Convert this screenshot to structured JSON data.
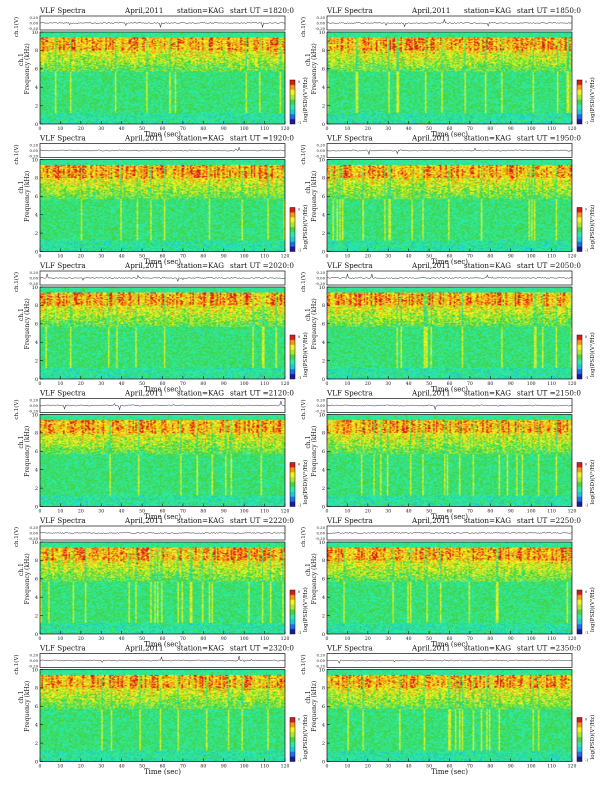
{
  "chart_data": [
    {
      "type": "heatmap",
      "title": "VLF Spectra",
      "date": "April,2011",
      "station": "station=KAG",
      "start": "start UT =1820:0",
      "wave_label": "ch.1(V)",
      "wave_ticks": [
        "0.20",
        "0.00",
        "-0.20"
      ],
      "ylabel_ch": "ch.1",
      "ylabel": "Frequency (kHz)",
      "yticks": [
        "0",
        "2",
        "4",
        "6",
        "8",
        "10"
      ],
      "ylim": [
        0,
        10
      ],
      "xlabel": "Time (sec)",
      "xticks": [
        "0",
        "10",
        "20",
        "30",
        "40",
        "50",
        "60",
        "70",
        "80",
        "90",
        "100",
        "110",
        "120"
      ],
      "xlim": [
        0,
        120
      ],
      "colorbar_label": "log(PSD)(V²/Hz)",
      "colorbar_ticks": [
        "0",
        "-1"
      ]
    },
    {
      "type": "heatmap",
      "title": "VLF Spectra",
      "date": "April,2011",
      "station": "station=KAG",
      "start": "start UT =1850:0",
      "wave_label": "ch.1(V)",
      "wave_ticks": [
        "0.20",
        "0.00",
        "-0.20"
      ],
      "ylabel_ch": "ch.1",
      "ylabel": "Frequency (kHz)",
      "yticks": [
        "0",
        "2",
        "4",
        "6",
        "8",
        "10"
      ],
      "ylim": [
        0,
        10
      ],
      "xlabel": "Time (sec)",
      "xticks": [
        "0",
        "10",
        "20",
        "30",
        "40",
        "50",
        "60",
        "70",
        "80",
        "90",
        "100",
        "110",
        "120"
      ],
      "xlim": [
        0,
        120
      ],
      "colorbar_label": "log(PSD)(V²/Hz)",
      "colorbar_ticks": [
        "0",
        "-1"
      ]
    },
    {
      "type": "heatmap",
      "title": "VLF Spectra",
      "date": "April,2011",
      "station": "station=KAG",
      "start": "start UT =1920:0",
      "wave_label": "ch.1(V)",
      "wave_ticks": [
        "0.20",
        "0.00",
        "-0.20"
      ],
      "ylabel_ch": "ch.1",
      "ylabel": "Frequency (kHz)",
      "yticks": [
        "0",
        "2",
        "4",
        "6",
        "8",
        "10"
      ],
      "ylim": [
        0,
        10
      ],
      "xlabel": "Time (sec)",
      "xticks": [
        "0",
        "10",
        "20",
        "30",
        "40",
        "50",
        "60",
        "70",
        "80",
        "90",
        "100",
        "110",
        "120"
      ],
      "xlim": [
        0,
        120
      ],
      "colorbar_label": "log(PSD)(V²/Hz)",
      "colorbar_ticks": [
        "0",
        "-1"
      ]
    },
    {
      "type": "heatmap",
      "title": "VLF Spectra",
      "date": "April,2011",
      "station": "station=KAG",
      "start": "start UT =1950:0",
      "wave_label": "ch.1(V)",
      "wave_ticks": [
        "0.20",
        "0.00",
        "-0.20"
      ],
      "ylabel_ch": "ch.1",
      "ylabel": "Frequency (kHz)",
      "yticks": [
        "0",
        "2",
        "4",
        "6",
        "8",
        "10"
      ],
      "ylim": [
        0,
        10
      ],
      "xlabel": "Time (sec)",
      "xticks": [
        "0",
        "10",
        "20",
        "30",
        "40",
        "50",
        "60",
        "70",
        "80",
        "90",
        "100",
        "110",
        "120"
      ],
      "xlim": [
        0,
        120
      ],
      "colorbar_label": "log(PSD)(V²/Hz)",
      "colorbar_ticks": [
        "0",
        "-1"
      ]
    },
    {
      "type": "heatmap",
      "title": "VLF Spectra",
      "date": "April,2011",
      "station": "station=KAG",
      "start": "start UT =2020:0",
      "wave_label": "ch.1(V)",
      "wave_ticks": [
        "0.20",
        "0.00",
        "-0.20"
      ],
      "ylabel_ch": "ch.1",
      "ylabel": "Frequency (kHz)",
      "yticks": [
        "0",
        "2",
        "4",
        "6",
        "8",
        "10"
      ],
      "ylim": [
        0,
        10
      ],
      "xlabel": "Time (sec)",
      "xticks": [
        "0",
        "10",
        "20",
        "30",
        "40",
        "50",
        "60",
        "70",
        "80",
        "90",
        "100",
        "110",
        "120"
      ],
      "xlim": [
        0,
        120
      ],
      "colorbar_label": "log(PSD)(V²/Hz)",
      "colorbar_ticks": [
        "0",
        "-1"
      ]
    },
    {
      "type": "heatmap",
      "title": "VLF Spectra",
      "date": "April,2011",
      "station": "station=KAG",
      "start": "start UT =2050:0",
      "wave_label": "ch.1(V)",
      "wave_ticks": [
        "0.20",
        "0.00",
        "-0.20"
      ],
      "ylabel_ch": "ch.1",
      "ylabel": "Frequency (kHz)",
      "yticks": [
        "0",
        "2",
        "4",
        "6",
        "8",
        "10"
      ],
      "ylim": [
        0,
        10
      ],
      "xlabel": "Time (sec)",
      "xticks": [
        "0",
        "10",
        "20",
        "30",
        "40",
        "50",
        "60",
        "70",
        "80",
        "90",
        "100",
        "110",
        "120"
      ],
      "xlim": [
        0,
        120
      ],
      "colorbar_label": "log(PSD)(V²/Hz)",
      "colorbar_ticks": [
        "0",
        "-1"
      ]
    },
    {
      "type": "heatmap",
      "title": "VLF Spectra",
      "date": "April,2011",
      "station": "station=KAG",
      "start": "start UT =2120:0",
      "wave_label": "ch.1(V)",
      "wave_ticks": [
        "0.20",
        "0.00",
        "-0.20"
      ],
      "ylabel_ch": "ch.1",
      "ylabel": "Frequency (kHz)",
      "yticks": [
        "0",
        "2",
        "4",
        "6",
        "8",
        "10"
      ],
      "ylim": [
        0,
        10
      ],
      "xlabel": "Time (sec)",
      "xticks": [
        "0",
        "10",
        "20",
        "30",
        "40",
        "50",
        "60",
        "70",
        "80",
        "90",
        "100",
        "110",
        "120"
      ],
      "xlim": [
        0,
        120
      ],
      "colorbar_label": "log(PSD)(V²/Hz)",
      "colorbar_ticks": [
        "0",
        "-1"
      ]
    },
    {
      "type": "heatmap",
      "title": "VLF Spectra",
      "date": "April,2011",
      "station": "station=KAG",
      "start": "start UT =2150:0",
      "wave_label": "ch.1(V)",
      "wave_ticks": [
        "0.20",
        "0.00",
        "-0.20"
      ],
      "ylabel_ch": "ch.1",
      "ylabel": "Frequency (kHz)",
      "yticks": [
        "0",
        "2",
        "4",
        "6",
        "8",
        "10"
      ],
      "ylim": [
        0,
        10
      ],
      "xlabel": "Time (sec)",
      "xticks": [
        "0",
        "10",
        "20",
        "30",
        "40",
        "50",
        "60",
        "70",
        "80",
        "90",
        "100",
        "110",
        "120"
      ],
      "xlim": [
        0,
        120
      ],
      "colorbar_label": "log(PSD)(V²/Hz)",
      "colorbar_ticks": [
        "0",
        "-1"
      ]
    },
    {
      "type": "heatmap",
      "title": "VLF Spectra",
      "date": "April,2011",
      "station": "station=KAG",
      "start": "start UT =2220:0",
      "wave_label": "ch.1(V)",
      "wave_ticks": [
        "0.20",
        "0.00",
        "-0.20"
      ],
      "ylabel_ch": "ch.1",
      "ylabel": "Frequency (kHz)",
      "yticks": [
        "0",
        "2",
        "4",
        "6",
        "8",
        "10"
      ],
      "ylim": [
        0,
        10
      ],
      "xlabel": "Time (sec)",
      "xticks": [
        "0",
        "10",
        "20",
        "30",
        "40",
        "50",
        "60",
        "70",
        "80",
        "90",
        "100",
        "110",
        "120"
      ],
      "xlim": [
        0,
        120
      ],
      "colorbar_label": "log(PSD)(V²/Hz)",
      "colorbar_ticks": [
        "0",
        "-1"
      ]
    },
    {
      "type": "heatmap",
      "title": "VLF Spectra",
      "date": "April,2011",
      "station": "station=KAG",
      "start": "start UT =2250:0",
      "wave_label": "ch.1(V)",
      "wave_ticks": [
        "0.20",
        "0.00",
        "-0.20"
      ],
      "ylabel_ch": "ch.1",
      "ylabel": "Frequency (kHz)",
      "yticks": [
        "0",
        "2",
        "4",
        "6",
        "8",
        "10"
      ],
      "ylim": [
        0,
        10
      ],
      "xlabel": "Time (sec)",
      "xticks": [
        "0",
        "10",
        "20",
        "30",
        "40",
        "50",
        "60",
        "70",
        "80",
        "90",
        "100",
        "110",
        "120"
      ],
      "xlim": [
        0,
        120
      ],
      "colorbar_label": "log(PSD)(V²/Hz)",
      "colorbar_ticks": [
        "0",
        "-1"
      ]
    },
    {
      "type": "heatmap",
      "title": "VLF Spectra",
      "date": "April,2011",
      "station": "station=KAG",
      "start": "start UT =2320:0",
      "wave_label": "ch.1(V)",
      "wave_ticks": [
        "0.20",
        "0.00",
        "-0.20"
      ],
      "ylabel_ch": "ch.1",
      "ylabel": "Frequency (kHz)",
      "yticks": [
        "0",
        "2",
        "4",
        "6",
        "8",
        "10"
      ],
      "ylim": [
        0,
        10
      ],
      "xlabel": "Time (sec)",
      "xticks": [
        "0",
        "10",
        "20",
        "30",
        "40",
        "50",
        "60",
        "70",
        "80",
        "90",
        "100",
        "110",
        "120"
      ],
      "xlim": [
        0,
        120
      ],
      "colorbar_label": "log(PSD)(V²/Hz)",
      "colorbar_ticks": [
        "0",
        "-1"
      ]
    },
    {
      "type": "heatmap",
      "title": "VLF Spectra",
      "date": "April,2011",
      "station": "station=KAG",
      "start": "start UT =2350:0",
      "wave_label": "ch.1(V)",
      "wave_ticks": [
        "0.20",
        "0.00",
        "-0.20"
      ],
      "ylabel_ch": "ch.1",
      "ylabel": "Frequency (kHz)",
      "yticks": [
        "0",
        "2",
        "4",
        "6",
        "8",
        "10"
      ],
      "ylim": [
        0,
        10
      ],
      "xlabel": "Time (sec)",
      "xticks": [
        "0",
        "10",
        "20",
        "30",
        "40",
        "50",
        "60",
        "70",
        "80",
        "90",
        "100",
        "110",
        "120"
      ],
      "xlim": [
        0,
        120
      ],
      "colorbar_label": "log(PSD)(V²/Hz)",
      "colorbar_ticks": [
        "0",
        "-1"
      ]
    }
  ],
  "colors": {
    "colormap": [
      "#1a1aa0",
      "#1e6ee6",
      "#19c8dc",
      "#2ee8a0",
      "#43d543",
      "#aee62e",
      "#f2f21d",
      "#f59a16",
      "#dc1a1a"
    ],
    "axis": "#111111",
    "waveform": "#222222"
  }
}
